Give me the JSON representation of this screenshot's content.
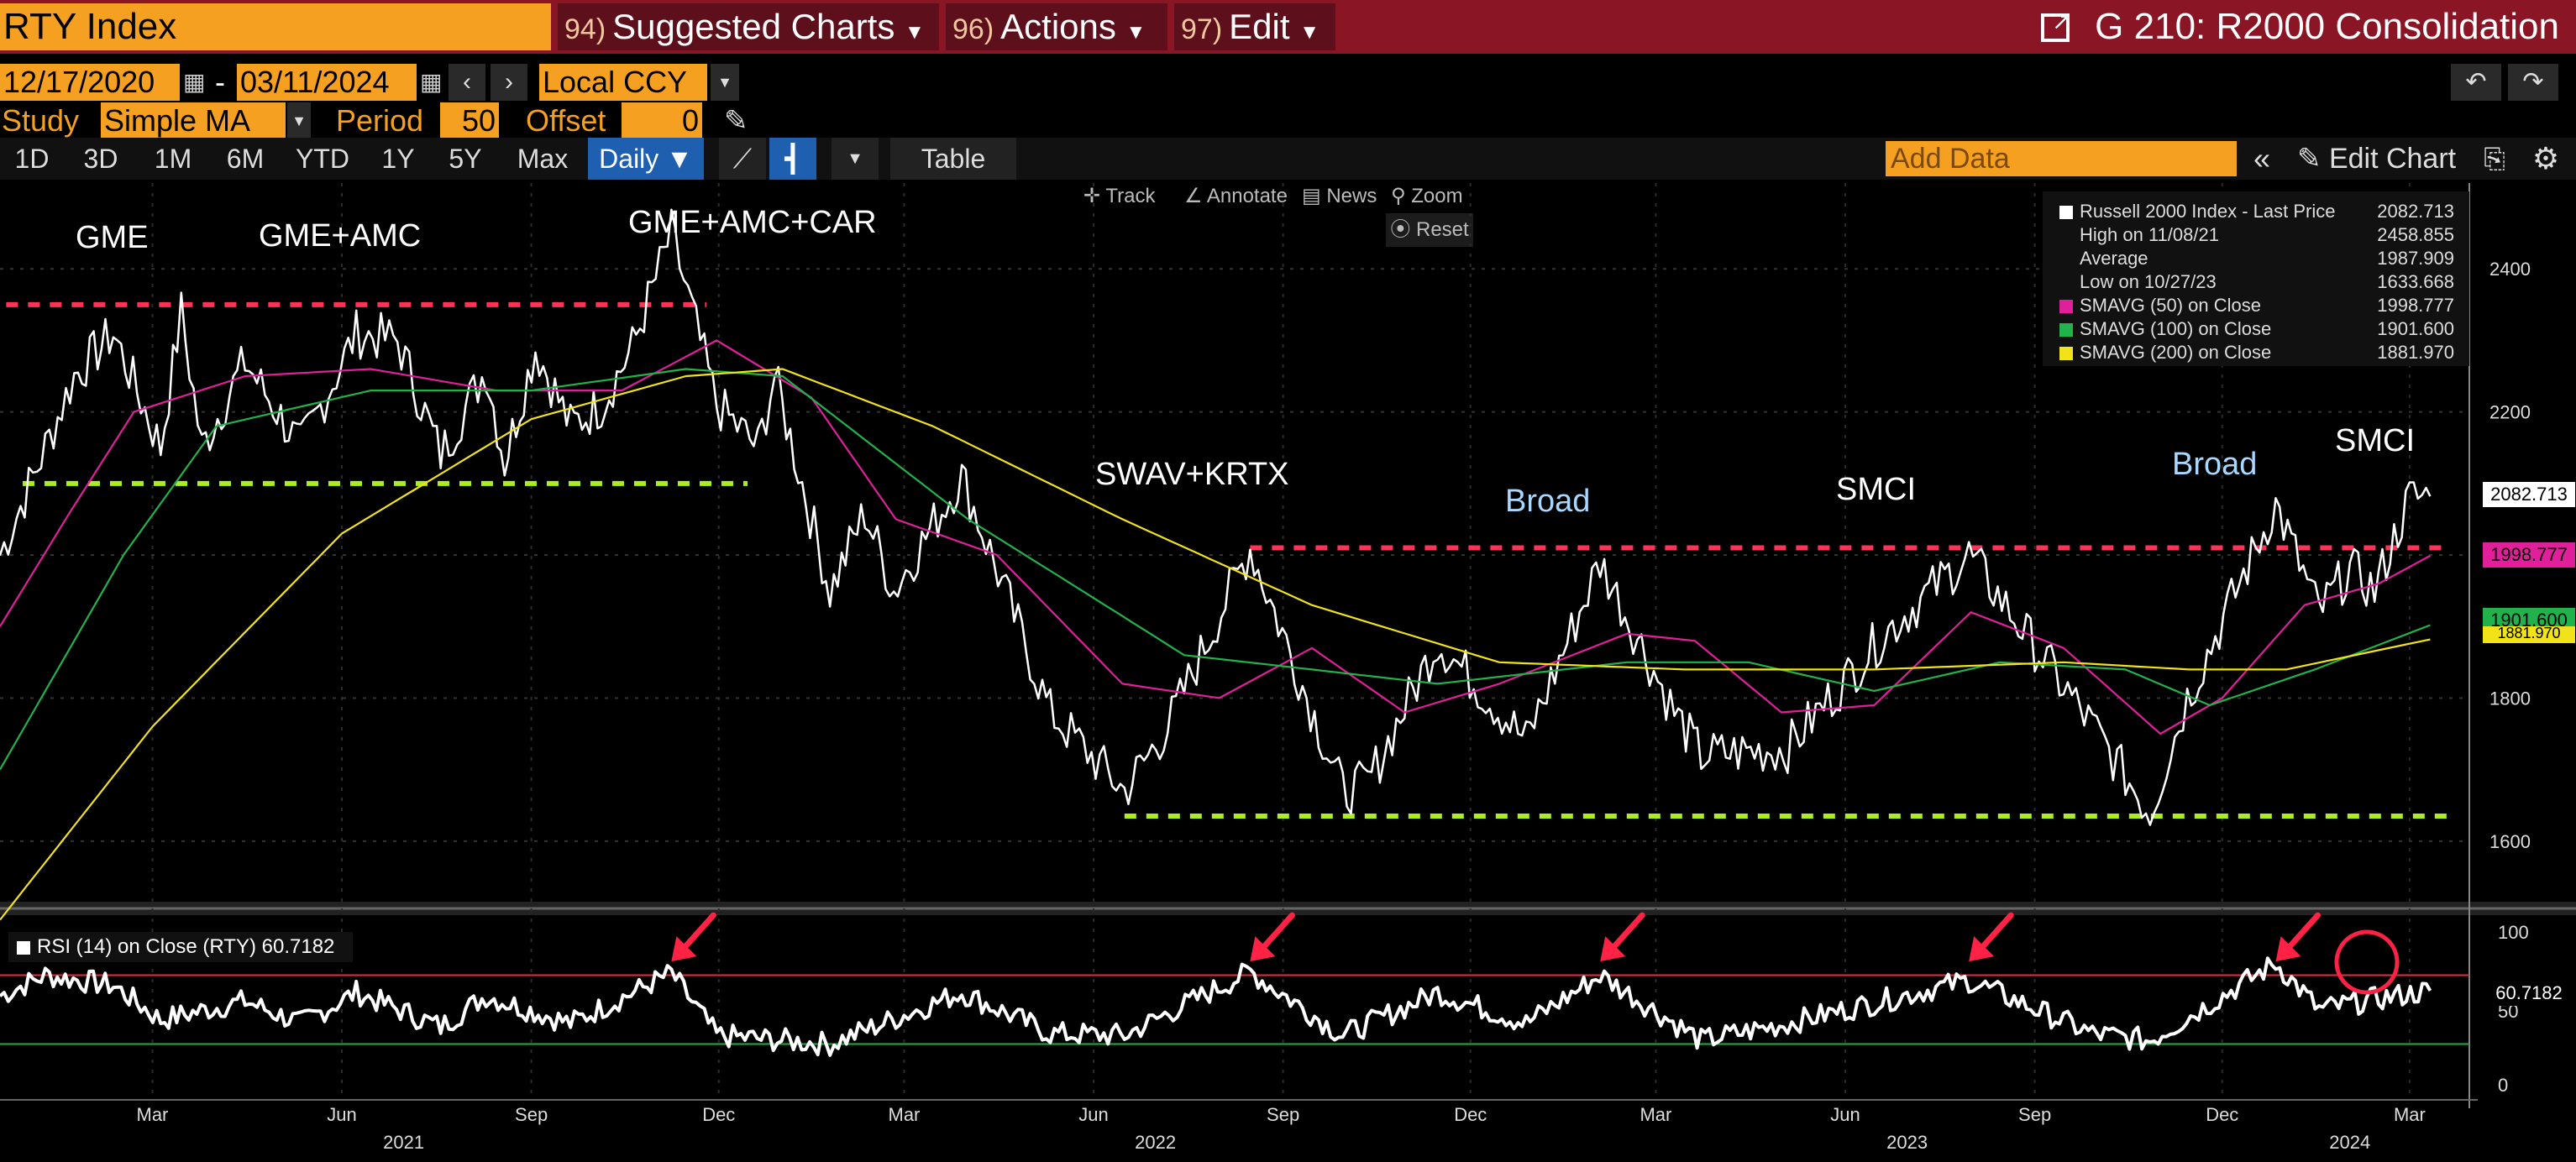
{
  "header": {
    "ticker": "RTY Index",
    "menu": [
      {
        "num": "94)",
        "label": "Suggested Charts"
      },
      {
        "num": "96)",
        "label": "Actions"
      },
      {
        "num": "97)",
        "label": "Edit"
      }
    ],
    "chart_title": "G 210: R2000 Consolidation"
  },
  "controls": {
    "start_date": "12/17/2020",
    "end_date": "03/11/2024",
    "currency": "Local CCY",
    "study_label": "Study",
    "study_value": "Simple MA",
    "period_label": "Period",
    "period_value": "50",
    "offset_label": "Offset",
    "offset_value": "0",
    "timeframes": [
      "1D",
      "3D",
      "1M",
      "6M",
      "YTD",
      "1Y",
      "5Y",
      "Max"
    ],
    "interval": "Daily ▼",
    "table_label": "Table",
    "add_data_placeholder": "Add Data",
    "edit_chart_label": "Edit Chart"
  },
  "tools": {
    "track": "Track",
    "annotate": "Annotate",
    "news": "News",
    "zoom": "Zoom",
    "reset": "Reset"
  },
  "legend": {
    "rows": [
      {
        "label": "Russell 2000 Index - Last Price",
        "value": "2082.713",
        "color": "#ffffff"
      },
      {
        "label": "High on 11/08/21",
        "value": "2458.855",
        "color": ""
      },
      {
        "label": "Average",
        "value": "1987.909",
        "color": ""
      },
      {
        "label": "Low on 10/27/23",
        "value": "1633.668",
        "color": ""
      },
      {
        "label": "SMAVG (50)  on Close",
        "value": "1998.777",
        "color": "#e0209a"
      },
      {
        "label": "SMAVG (100)  on Close",
        "value": "1901.600",
        "color": "#22b24c"
      },
      {
        "label": "SMAVG (200)  on Close",
        "value": "1881.970",
        "color": "#f2e21a"
      }
    ]
  },
  "annotations": {
    "gme": "GME",
    "gme_amc": "GME+AMC",
    "gme_amc_car": "GME+AMC+CAR",
    "swav": "SWAV+KRTX",
    "broad1": "Broad",
    "smci1": "SMCI",
    "broad2": "Broad",
    "smci2": "SMCI"
  },
  "rsi": {
    "label": "RSI (14)  on Close (RTY) 60.7182",
    "value_tag": "60.7182",
    "axis": [
      "100",
      "50",
      "0"
    ]
  },
  "price_tags": {
    "last": "2082.713",
    "sma50": "1998.777",
    "sma100": "1901.600",
    "sma200": "1881.970"
  },
  "colors": {
    "price": "#ffffff",
    "sma50": "#e0209a",
    "sma100": "#22b24c",
    "sma200": "#f2e21a",
    "resistance": "#ff3355",
    "support": "#aaee22",
    "arrow": "#ff2244"
  },
  "chart_data": {
    "type": "line",
    "title": "",
    "ylim": [
      1520,
      2520
    ],
    "yticks": [
      1600,
      1800,
      2000,
      2200,
      2400
    ],
    "x_axis": {
      "months": [
        {
          "label": "Mar",
          "date": "2021-03-01"
        },
        {
          "label": "Jun",
          "date": "2021-06-01"
        },
        {
          "label": "Sep",
          "date": "2021-09-01"
        },
        {
          "label": "Dec",
          "date": "2021-12-01"
        },
        {
          "label": "Mar",
          "date": "2022-03-01"
        },
        {
          "label": "Jun",
          "date": "2022-06-01"
        },
        {
          "label": "Sep",
          "date": "2022-09-01"
        },
        {
          "label": "Dec",
          "date": "2022-12-01"
        },
        {
          "label": "Mar",
          "date": "2023-03-01"
        },
        {
          "label": "Jun",
          "date": "2023-06-01"
        },
        {
          "label": "Sep",
          "date": "2023-09-01"
        },
        {
          "label": "Dec",
          "date": "2023-12-01"
        },
        {
          "label": "Mar",
          "date": "2024-03-01"
        }
      ],
      "years": [
        {
          "label": "2021",
          "date": "2021-07-01"
        },
        {
          "label": "2022",
          "date": "2022-07-01"
        },
        {
          "label": "2023",
          "date": "2023-07-01"
        },
        {
          "label": "2024",
          "date": "2024-02-01"
        }
      ]
    },
    "series": [
      {
        "name": "Russell 2000 Index - Last Price",
        "points": [
          [
            "2020-12-17",
            2000
          ],
          [
            "2021-01-08",
            2150
          ],
          [
            "2021-01-22",
            2250
          ],
          [
            "2021-02-10",
            2310
          ],
          [
            "2021-03-05",
            2150
          ],
          [
            "2021-03-15",
            2340
          ],
          [
            "2021-03-25",
            2150
          ],
          [
            "2021-04-15",
            2270
          ],
          [
            "2021-05-12",
            2150
          ],
          [
            "2021-06-08",
            2310
          ],
          [
            "2021-06-28",
            2300
          ],
          [
            "2021-07-19",
            2140
          ],
          [
            "2021-08-10",
            2260
          ],
          [
            "2021-08-19",
            2130
          ],
          [
            "2021-09-03",
            2290
          ],
          [
            "2021-09-20",
            2180
          ],
          [
            "2021-10-05",
            2210
          ],
          [
            "2021-10-20",
            2290
          ],
          [
            "2021-11-08",
            2450
          ],
          [
            "2021-11-30",
            2210
          ],
          [
            "2021-12-20",
            2150
          ],
          [
            "2021-12-28",
            2250
          ],
          [
            "2022-01-24",
            1950
          ],
          [
            "2022-02-10",
            2060
          ],
          [
            "2022-02-24",
            1950
          ],
          [
            "2022-03-29",
            2110
          ],
          [
            "2022-05-11",
            1780
          ],
          [
            "2022-06-16",
            1670
          ],
          [
            "2022-07-07",
            1760
          ],
          [
            "2022-08-16",
            2010
          ],
          [
            "2022-09-30",
            1670
          ],
          [
            "2022-10-12",
            1680
          ],
          [
            "2022-11-15",
            1880
          ],
          [
            "2022-12-28",
            1740
          ],
          [
            "2023-02-02",
            1990
          ],
          [
            "2023-03-10",
            1780
          ],
          [
            "2023-03-23",
            1720
          ],
          [
            "2023-05-04",
            1730
          ],
          [
            "2023-06-20",
            1890
          ],
          [
            "2023-07-31",
            2000
          ],
          [
            "2023-09-29",
            1760
          ],
          [
            "2023-10-27",
            1640
          ],
          [
            "2023-11-14",
            1800
          ],
          [
            "2023-12-27",
            2070
          ],
          [
            "2024-01-17",
            1920
          ],
          [
            "2024-02-01",
            1980
          ],
          [
            "2024-02-13",
            1950
          ],
          [
            "2024-03-01",
            2080
          ],
          [
            "2024-03-11",
            2082
          ]
        ]
      },
      {
        "name": "SMAVG (50)  on Close",
        "points": [
          [
            "2020-12-17",
            1900
          ],
          [
            "2021-01-20",
            2060
          ],
          [
            "2021-02-20",
            2200
          ],
          [
            "2021-04-15",
            2250
          ],
          [
            "2021-06-15",
            2260
          ],
          [
            "2021-08-15",
            2230
          ],
          [
            "2021-10-15",
            2230
          ],
          [
            "2021-11-30",
            2300
          ],
          [
            "2022-01-15",
            2220
          ],
          [
            "2022-02-25",
            2050
          ],
          [
            "2022-04-15",
            2000
          ],
          [
            "2022-06-15",
            1820
          ],
          [
            "2022-08-01",
            1800
          ],
          [
            "2022-09-15",
            1870
          ],
          [
            "2022-10-30",
            1780
          ],
          [
            "2022-12-15",
            1820
          ],
          [
            "2023-02-15",
            1890
          ],
          [
            "2023-03-20",
            1880
          ],
          [
            "2023-05-01",
            1780
          ],
          [
            "2023-06-15",
            1790
          ],
          [
            "2023-08-01",
            1920
          ],
          [
            "2023-09-15",
            1870
          ],
          [
            "2023-11-01",
            1750
          ],
          [
            "2023-12-01",
            1800
          ],
          [
            "2024-01-10",
            1930
          ],
          [
            "2024-02-15",
            1960
          ],
          [
            "2024-03-11",
            1999
          ]
        ]
      },
      {
        "name": "SMAVG (100)  on Close",
        "points": [
          [
            "2020-12-17",
            1700
          ],
          [
            "2021-02-15",
            2000
          ],
          [
            "2021-04-01",
            2180
          ],
          [
            "2021-06-15",
            2230
          ],
          [
            "2021-09-01",
            2230
          ],
          [
            "2021-11-15",
            2260
          ],
          [
            "2022-01-01",
            2250
          ],
          [
            "2022-02-15",
            2150
          ],
          [
            "2022-04-01",
            2050
          ],
          [
            "2022-06-01",
            1940
          ],
          [
            "2022-07-15",
            1860
          ],
          [
            "2022-09-15",
            1840
          ],
          [
            "2022-11-15",
            1820
          ],
          [
            "2023-02-15",
            1850
          ],
          [
            "2023-04-15",
            1850
          ],
          [
            "2023-06-15",
            1810
          ],
          [
            "2023-08-15",
            1850
          ],
          [
            "2023-10-15",
            1840
          ],
          [
            "2023-11-25",
            1790
          ],
          [
            "2024-01-15",
            1840
          ],
          [
            "2024-03-11",
            1902
          ]
        ]
      },
      {
        "name": "SMAVG (200)  on Close",
        "points": [
          [
            "2020-12-17",
            1490
          ],
          [
            "2021-03-01",
            1760
          ],
          [
            "2021-06-01",
            2030
          ],
          [
            "2021-09-01",
            2190
          ],
          [
            "2021-11-15",
            2250
          ],
          [
            "2022-01-01",
            2260
          ],
          [
            "2022-03-15",
            2180
          ],
          [
            "2022-06-15",
            2050
          ],
          [
            "2022-09-15",
            1930
          ],
          [
            "2022-12-15",
            1850
          ],
          [
            "2023-03-15",
            1840
          ],
          [
            "2023-06-15",
            1840
          ],
          [
            "2023-09-15",
            1850
          ],
          [
            "2023-11-15",
            1840
          ],
          [
            "2024-01-01",
            1840
          ],
          [
            "2024-03-11",
            1882
          ]
        ]
      },
      {
        "name": "RSI (14)  on Close (RTY)",
        "axis": "rsi",
        "points": [
          [
            "2020-12-17",
            58
          ],
          [
            "2021-01-08",
            70
          ],
          [
            "2021-02-10",
            64
          ],
          [
            "2021-03-05",
            44
          ],
          [
            "2021-04-15",
            55
          ],
          [
            "2021-05-12",
            42
          ],
          [
            "2021-06-08",
            60
          ],
          [
            "2021-07-19",
            40
          ],
          [
            "2021-08-10",
            58
          ],
          [
            "2021-09-20",
            42
          ],
          [
            "2021-11-08",
            71
          ],
          [
            "2021-11-30",
            35
          ],
          [
            "2022-01-24",
            30
          ],
          [
            "2022-03-29",
            60
          ],
          [
            "2022-05-11",
            36
          ],
          [
            "2022-06-16",
            35
          ],
          [
            "2022-08-16",
            72
          ],
          [
            "2022-09-30",
            35
          ],
          [
            "2022-11-15",
            60
          ],
          [
            "2022-12-28",
            42
          ],
          [
            "2023-02-02",
            70
          ],
          [
            "2023-03-23",
            32
          ],
          [
            "2023-05-04",
            42
          ],
          [
            "2023-07-31",
            67
          ],
          [
            "2023-09-29",
            36
          ],
          [
            "2023-10-27",
            32
          ],
          [
            "2023-12-27",
            77
          ],
          [
            "2024-01-17",
            50
          ],
          [
            "2024-02-13",
            56
          ],
          [
            "2024-03-11",
            61
          ]
        ]
      }
    ],
    "levels": [
      {
        "kind": "resistance",
        "value": 2350,
        "from": "2020-12-20",
        "to": "2021-11-25"
      },
      {
        "kind": "support",
        "value": 2100,
        "from": "2020-12-28",
        "to": "2021-12-15"
      },
      {
        "kind": "resistance",
        "value": 2010,
        "from": "2022-08-16",
        "to": "2024-03-20"
      },
      {
        "kind": "support",
        "value": 1635,
        "from": "2022-06-16",
        "to": "2024-03-20"
      }
    ],
    "rsi_ylim": [
      0,
      100
    ],
    "rsi_bands": [
      70,
      30
    ]
  }
}
